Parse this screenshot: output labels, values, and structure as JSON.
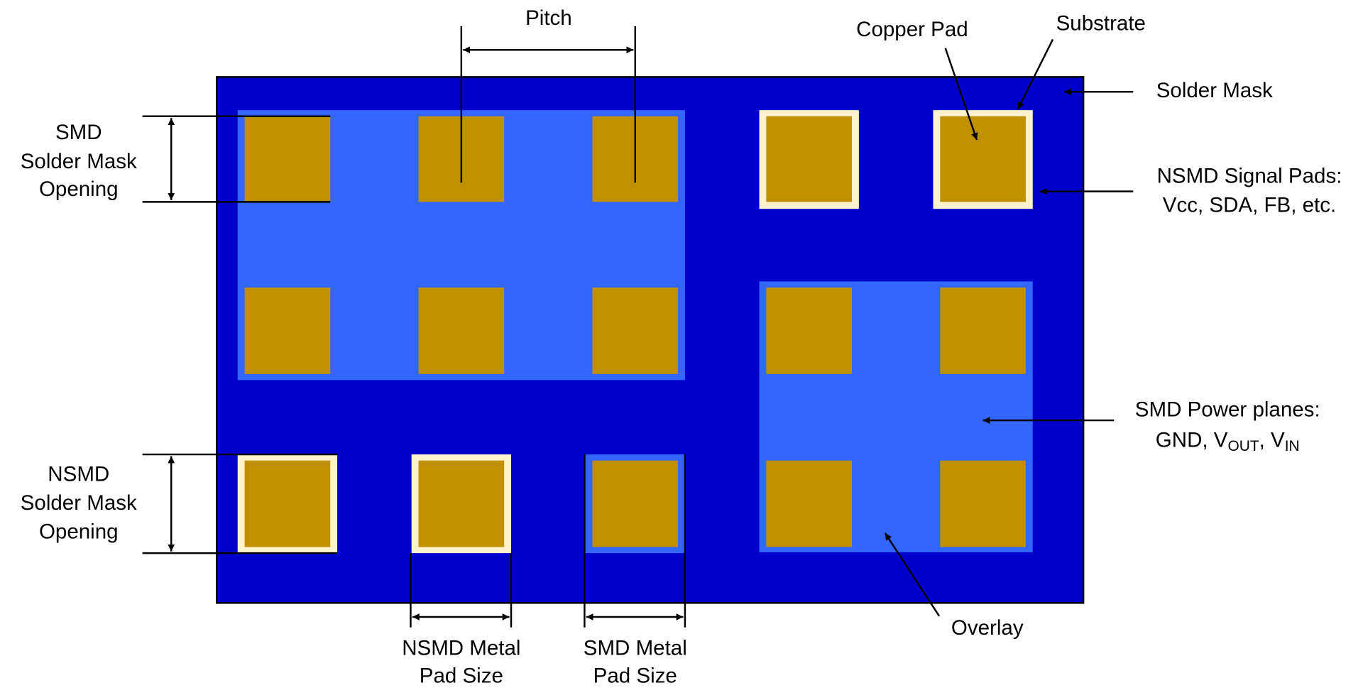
{
  "labels": {
    "pitch": "Pitch",
    "copper_pad": "Copper Pad",
    "substrate": "Substrate",
    "solder_mask": "Solder Mask",
    "smd_opening": [
      "SMD",
      "Solder Mask",
      "Opening"
    ],
    "nsmd_opening": [
      "NSMD",
      "Solder Mask",
      "Opening"
    ],
    "nsmd_signal": [
      "NSMD Signal Pads:",
      "Vcc, SDA, FB, etc."
    ],
    "smd_power": {
      "line1": "SMD Power planes:",
      "line2": [
        "GND, V",
        "OUT",
        ", V",
        "IN"
      ]
    },
    "overlay": "Overlay",
    "nsmd_metal": [
      "NSMD Metal",
      "Pad Size"
    ],
    "smd_metal": [
      "SMD Metal",
      "Pad Size"
    ]
  }
}
